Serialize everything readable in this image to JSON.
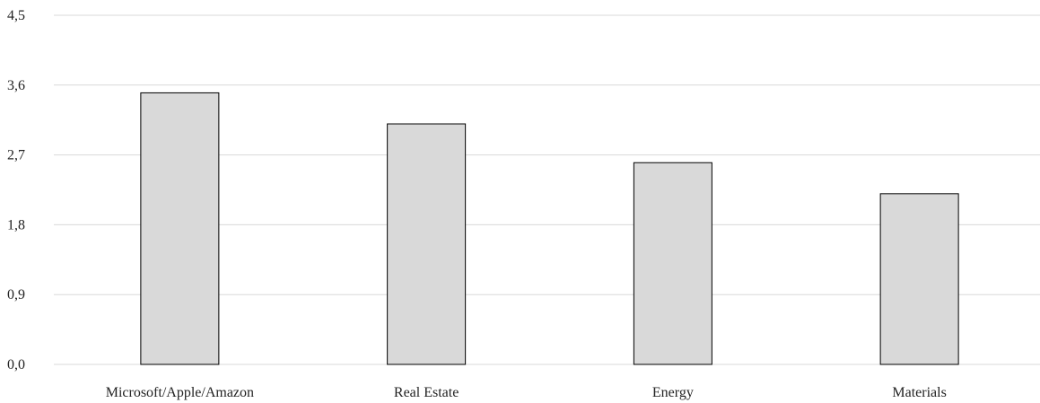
{
  "chart_data": {
    "type": "bar",
    "categories": [
      "Microsoft/Apple/Amazon",
      "Real Estate",
      "Energy",
      "Materials"
    ],
    "values": [
      3.5,
      3.1,
      2.6,
      2.2
    ],
    "y_ticks": [
      "0,0",
      "0,9",
      "1,8",
      "2,7",
      "3,6",
      "4,5"
    ],
    "ylim": [
      0,
      4.5
    ],
    "title": "",
    "xlabel": "",
    "ylabel": "",
    "grid": true,
    "legend": "none",
    "colors": {
      "bar_fill": "#d9d9d9",
      "bar_stroke": "#000000",
      "grid": "#d9d9d9"
    }
  }
}
